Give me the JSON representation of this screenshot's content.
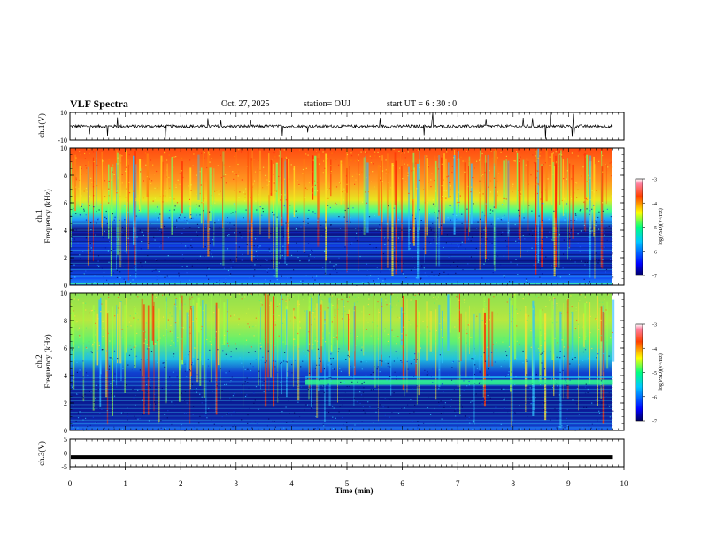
{
  "header": {
    "title": "VLF Spectra",
    "date": "Oct. 27, 2025",
    "station": "station= OUJ",
    "start": "start  UT =   6 : 30 : 0"
  },
  "chart_data": [
    {
      "type": "line",
      "panel": "ch1-waveform",
      "ylabel": "ch.1(V)",
      "ylim": [
        -10,
        10
      ],
      "yticks": [
        "10",
        "-10"
      ],
      "baseline": 0,
      "description_free": true
    },
    {
      "type": "heatmap",
      "panel": "ch1-spectrogram",
      "ylabel_line1": "ch.1",
      "ylabel_line2": "Frequency (kHz)",
      "ylim": [
        0,
        10
      ],
      "yticks": [
        "0",
        "2",
        "4",
        "6",
        "8",
        "10"
      ],
      "colorbar": {
        "label": "log(PSD)(V²/Hz)",
        "range": [
          -7,
          -3
        ],
        "ticks": [
          "-3",
          "-4",
          "-5",
          "-6",
          "-7"
        ]
      }
    },
    {
      "type": "heatmap",
      "panel": "ch2-spectrogram",
      "ylabel_line1": "ch.2",
      "ylabel_line2": "Frequency (kHz)",
      "ylim": [
        0,
        10
      ],
      "yticks": [
        "0",
        "2",
        "4",
        "6",
        "8",
        "10"
      ],
      "colorbar": {
        "label": "log(PSD)(V²/Hz)",
        "range": [
          -7,
          -3
        ],
        "ticks": [
          "-3",
          "-4",
          "-5",
          "-6",
          "-7"
        ]
      }
    },
    {
      "type": "line",
      "panel": "ch3-waveform",
      "ylabel": "ch.3(V)",
      "ylim": [
        -5,
        5
      ],
      "yticks": [
        "5",
        "0",
        "-5"
      ],
      "baseline": -1.5
    }
  ],
  "xaxis": {
    "label": "Time  (min)",
    "range": [
      0,
      10
    ],
    "ticks": [
      "0",
      "1",
      "2",
      "3",
      "4",
      "5",
      "6",
      "7",
      "8",
      "9",
      "10"
    ]
  }
}
